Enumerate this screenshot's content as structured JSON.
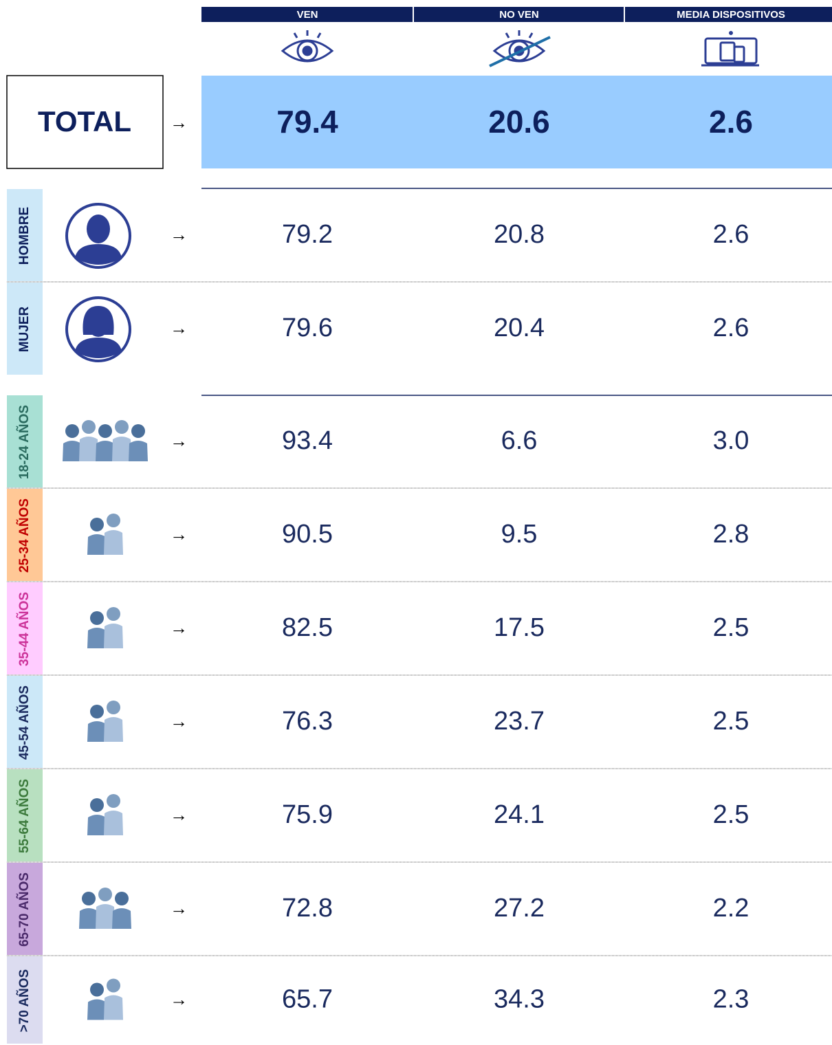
{
  "header": {
    "columns": [
      "VEN",
      "NO VEN",
      "MEDIA DISPOSITIVOS"
    ]
  },
  "arrow": "→",
  "total": {
    "label": "TOTAL",
    "values": [
      "79.4",
      "20.6",
      "2.6"
    ]
  },
  "gender": [
    {
      "label": "HOMBRE",
      "values": [
        "79.2",
        "20.8",
        "2.6"
      ]
    },
    {
      "label": "MUJER",
      "values": [
        "79.6",
        "20.4",
        "2.6"
      ]
    }
  ],
  "age": [
    {
      "label": "18-24 AÑOS",
      "values": [
        "93.4",
        "6.6",
        "3.0"
      ]
    },
    {
      "label": "25-34 AÑOS",
      "values": [
        "90.5",
        "9.5",
        "2.8"
      ]
    },
    {
      "label": "35-44 AÑOS",
      "values": [
        "82.5",
        "17.5",
        "2.5"
      ]
    },
    {
      "label": "45-54 AÑOS",
      "values": [
        "76.3",
        "23.7",
        "2.5"
      ]
    },
    {
      "label": "55-64 AÑOS",
      "values": [
        "75.9",
        "24.1",
        "2.5"
      ]
    },
    {
      "label": "65-70 AÑOS",
      "values": [
        "72.8",
        "27.2",
        "2.2"
      ]
    },
    {
      "label": ">70 AÑOS",
      "values": [
        "65.7",
        "34.3",
        "2.3"
      ]
    }
  ]
}
